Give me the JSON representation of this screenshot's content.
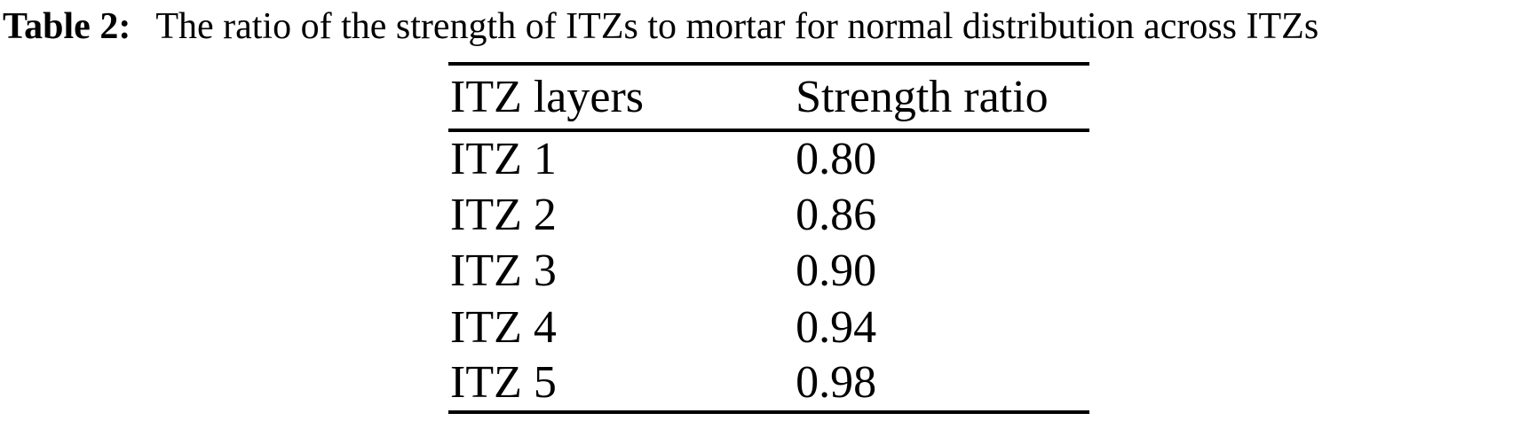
{
  "caption": {
    "label": "Table 2:",
    "text": "The ratio of the strength of ITZs to mortar for normal distribution across ITZs"
  },
  "table": {
    "columns": [
      "ITZ layers",
      "Strength ratio"
    ],
    "rows": [
      {
        "layer": "ITZ 1",
        "ratio": "0.80"
      },
      {
        "layer": "ITZ 2",
        "ratio": "0.86"
      },
      {
        "layer": "ITZ 3",
        "ratio": "0.90"
      },
      {
        "layer": "ITZ 4",
        "ratio": "0.94"
      },
      {
        "layer": "ITZ 5",
        "ratio": "0.98"
      }
    ]
  },
  "chart_data": {
    "type": "table",
    "title": "Table 2: The ratio of the strength of ITZs to mortar for normal distribution across ITZs",
    "columns": [
      "ITZ layers",
      "Strength ratio"
    ],
    "categories": [
      "ITZ 1",
      "ITZ 2",
      "ITZ 3",
      "ITZ 4",
      "ITZ 5"
    ],
    "values": [
      0.8,
      0.86,
      0.9,
      0.94,
      0.98
    ]
  },
  "colors": {
    "text": "#000000",
    "background": "#ffffff",
    "rule": "#000000"
  }
}
